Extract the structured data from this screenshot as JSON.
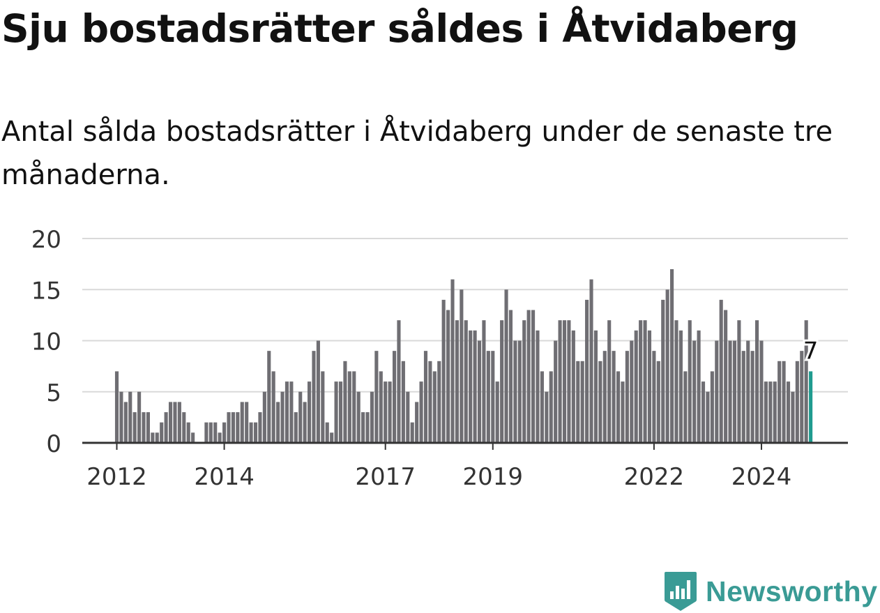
{
  "title": "Sju bostadsrätter såldes i Åtvidaberg",
  "subtitle": "Antal sålda bostadsrätter i Åtvidaberg under de senaste tre månaderna.",
  "brand": {
    "name": "Newsworthy",
    "icon": "newsworthy-logo-icon",
    "color": "#3a9b95"
  },
  "chart_data": {
    "type": "bar",
    "bar_color": "#6f6e73",
    "highlight_color": "#1f9b8f",
    "ylim": [
      0,
      20
    ],
    "yticks": [
      0,
      5,
      10,
      15,
      20
    ],
    "xticks": [
      {
        "label": "2012",
        "index": 0
      },
      {
        "label": "2014",
        "index": 24
      },
      {
        "label": "2017",
        "index": 60
      },
      {
        "label": "2019",
        "index": 84
      },
      {
        "label": "2022",
        "index": 120
      },
      {
        "label": "2024",
        "index": 144
      }
    ],
    "values": [
      7,
      5,
      4,
      5,
      3,
      5,
      3,
      3,
      1,
      1,
      2,
      3,
      4,
      4,
      4,
      3,
      2,
      1,
      0,
      0,
      2,
      2,
      2,
      1,
      2,
      3,
      3,
      3,
      4,
      4,
      2,
      2,
      3,
      5,
      9,
      7,
      4,
      5,
      6,
      6,
      3,
      5,
      4,
      6,
      9,
      10,
      7,
      2,
      1,
      6,
      6,
      8,
      7,
      7,
      5,
      3,
      3,
      5,
      9,
      7,
      6,
      6,
      9,
      12,
      8,
      5,
      2,
      4,
      6,
      9,
      8,
      7,
      8,
      14,
      13,
      16,
      12,
      15,
      12,
      11,
      11,
      10,
      12,
      9,
      9,
      6,
      12,
      15,
      13,
      10,
      10,
      12,
      13,
      13,
      11,
      7,
      5,
      7,
      10,
      12,
      12,
      12,
      11,
      8,
      8,
      14,
      16,
      11,
      8,
      9,
      12,
      9,
      7,
      6,
      9,
      10,
      11,
      12,
      12,
      11,
      9,
      8,
      14,
      15,
      17,
      12,
      11,
      7,
      12,
      10,
      11,
      6,
      5,
      7,
      10,
      14,
      13,
      10,
      10,
      12,
      9,
      10,
      9,
      12,
      10,
      6,
      6,
      6,
      8,
      8,
      6,
      5,
      8,
      9,
      12,
      7
    ],
    "highlight_index": 155,
    "annotation": {
      "index": 155,
      "text": "7"
    }
  }
}
